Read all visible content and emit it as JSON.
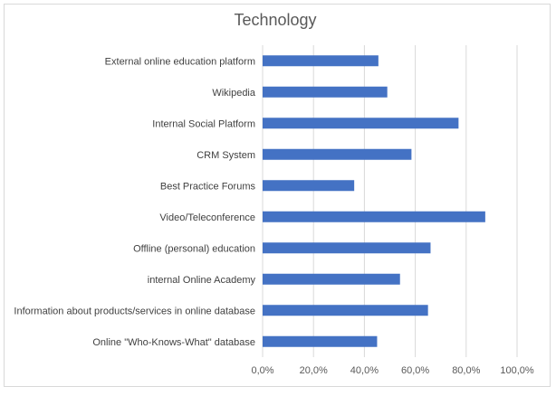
{
  "chart_data": {
    "type": "bar",
    "orientation": "horizontal",
    "title": "Technology",
    "xlabel": "",
    "ylabel": "",
    "categories": [
      "External online education platform",
      "Wikipedia",
      "Internal Social Platform",
      "CRM System",
      "Best Practice Forums",
      "Video/Teleconference",
      "Offline (personal) education",
      "internal Online Academy",
      "Information about products/services in online database",
      "Online \"Who-Knows-What\" database"
    ],
    "values": [
      45.5,
      49,
      77,
      58.5,
      36,
      87.5,
      66,
      54,
      65,
      45
    ],
    "xlim": [
      0,
      100
    ],
    "x_ticks": [
      0,
      20,
      40,
      60,
      80,
      100
    ],
    "x_tick_labels": [
      "0,0%",
      "20,0%",
      "40,0%",
      "60,0%",
      "80,0%",
      "100,0%"
    ],
    "grid": true,
    "legend": "none",
    "bar_color": "#4472c4"
  }
}
